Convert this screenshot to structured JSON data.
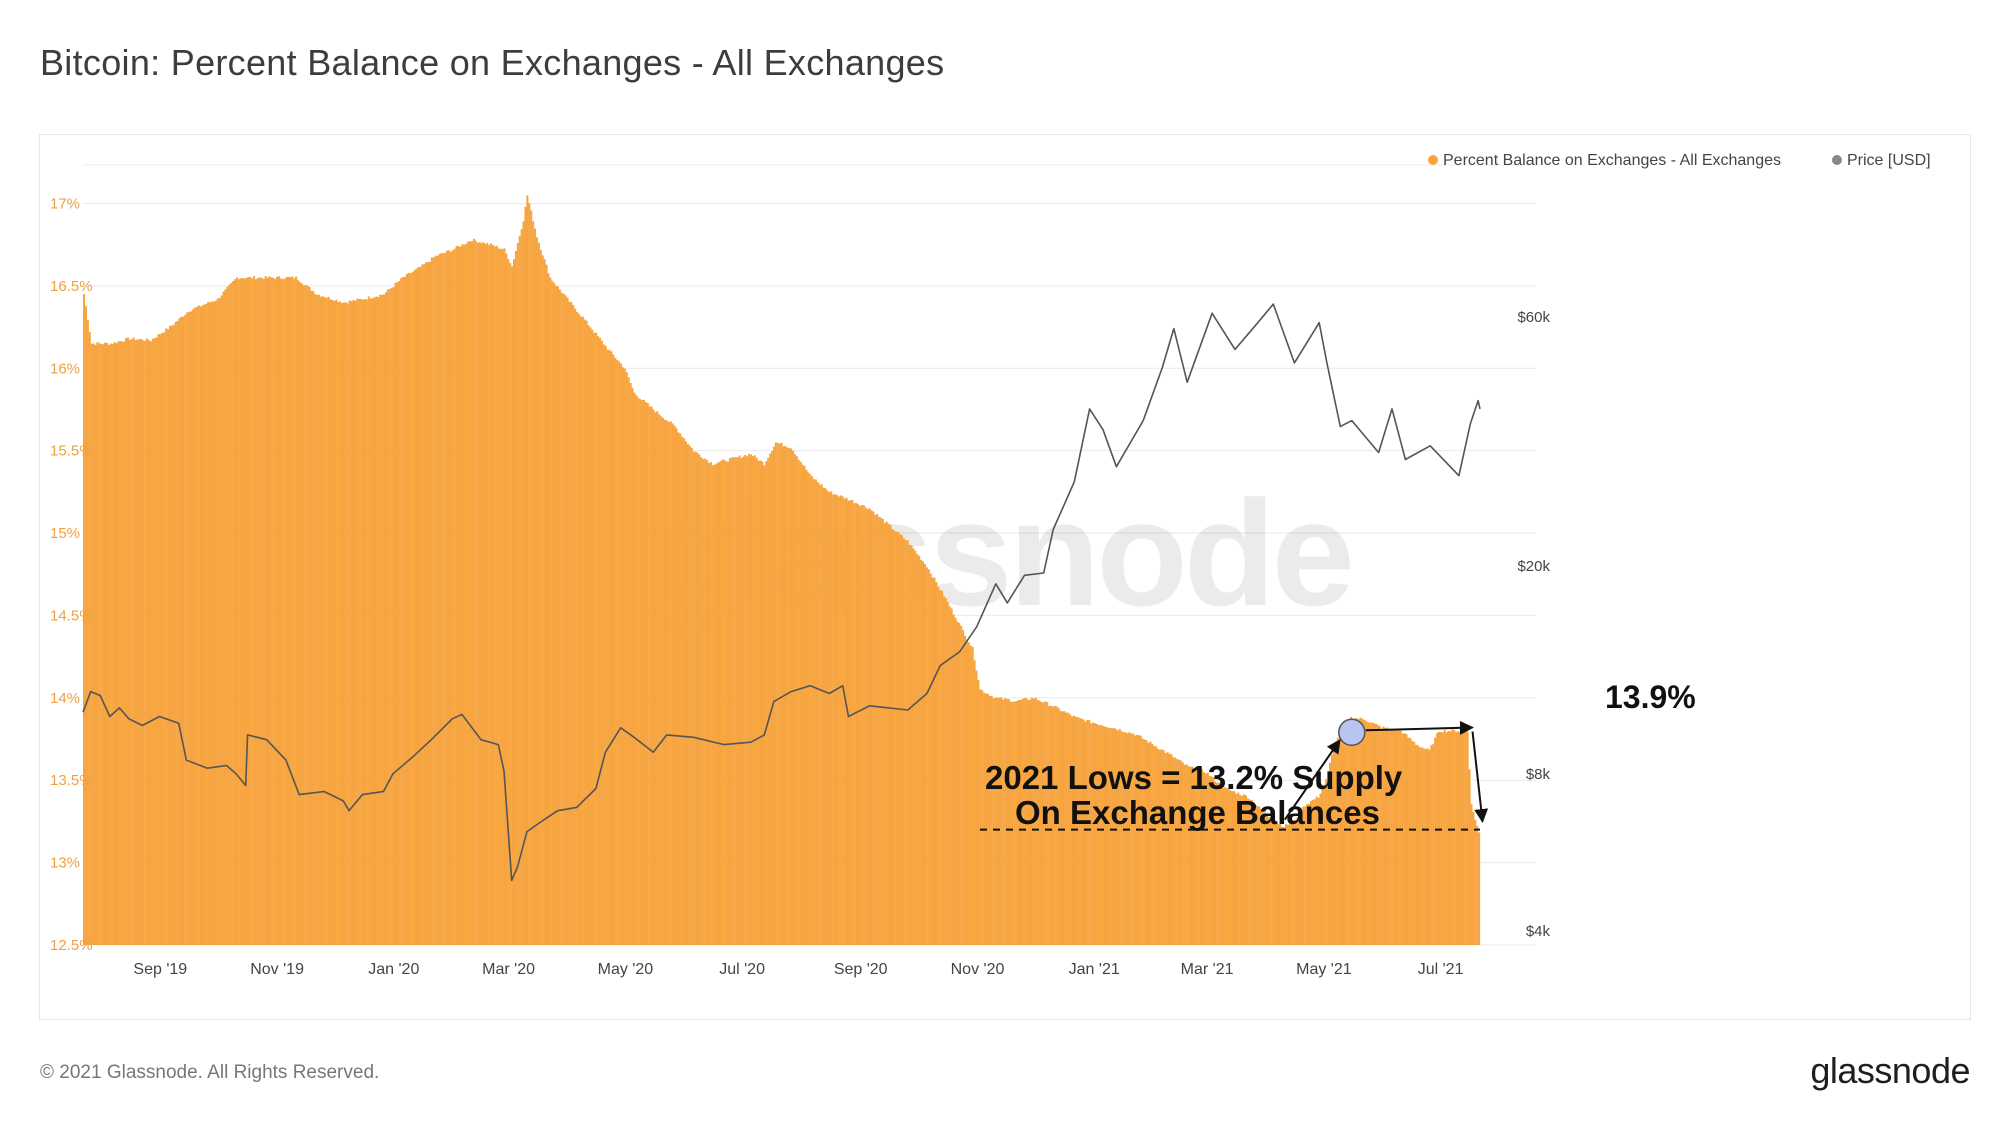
{
  "title": "Bitcoin: Percent Balance on Exchanges - All Exchanges",
  "footer": {
    "copyright": "© 2021 Glassnode. All Rights Reserved.",
    "logo": "glassnode"
  },
  "watermark": "glassnode",
  "colors": {
    "bars": "#f7a540",
    "price_line": "#555555",
    "legend_price_dot": "#888888",
    "left_axis": "#f0a040",
    "highlight_circle": "#b9c4f0"
  },
  "chart_data": {
    "type": "bar",
    "legend": {
      "placement": "top-right",
      "entries": [
        {
          "label": "Percent Balance on Exchanges - All Exchanges",
          "color": "#f7a540"
        },
        {
          "label": "Price [USD]",
          "color": "#888888"
        }
      ]
    },
    "x_axis": {
      "type": "date",
      "ticks": [
        "Sep '19",
        "Nov '19",
        "Jan '20",
        "Mar '20",
        "May '20",
        "Jul '20",
        "Sep '20",
        "Nov '20",
        "Jan '21",
        "Mar '21",
        "May '21",
        "Jul '21"
      ],
      "tick_dates": [
        "2019-09-01",
        "2019-11-01",
        "2020-01-01",
        "2020-03-01",
        "2020-05-01",
        "2020-07-01",
        "2020-09-01",
        "2020-11-01",
        "2021-01-01",
        "2021-03-01",
        "2021-05-01",
        "2021-07-01"
      ],
      "range": [
        "2019-08-01",
        "2021-07-31"
      ]
    },
    "y_left": {
      "label": "",
      "ylim": [
        12.5,
        17.1
      ],
      "ticks": [
        12.5,
        13,
        13.5,
        14,
        14.5,
        15,
        15.5,
        16,
        16.5,
        17
      ],
      "tick_labels": [
        "12.5%",
        "13%",
        "13.5%",
        "14%",
        "14.5%",
        "15%",
        "15.5%",
        "16%",
        "16.5%",
        "17%"
      ]
    },
    "y_right": {
      "label": "",
      "scale": "log",
      "ylim": [
        4000,
        60000
      ],
      "ticks": [
        4000,
        8000,
        20000,
        60000
      ],
      "tick_labels": [
        "$4k",
        "$8k",
        "$20k",
        "$60k"
      ]
    },
    "grid": true,
    "series": [
      {
        "name": "Percent Balance on Exchanges - All Exchanges",
        "type": "bar",
        "axis": "left",
        "points": [
          [
            "2019-08-01",
            16.45
          ],
          [
            "2019-08-05",
            16.15
          ],
          [
            "2019-08-15",
            16.15
          ],
          [
            "2019-08-25",
            16.18
          ],
          [
            "2019-09-05",
            16.17
          ],
          [
            "2019-09-15",
            16.25
          ],
          [
            "2019-09-25",
            16.35
          ],
          [
            "2019-10-10",
            16.42
          ],
          [
            "2019-10-20",
            16.55
          ],
          [
            "2019-10-25",
            16.55
          ],
          [
            "2019-11-05",
            16.55
          ],
          [
            "2019-11-20",
            16.55
          ],
          [
            "2019-12-01",
            16.45
          ],
          [
            "2019-12-15",
            16.4
          ],
          [
            "2019-12-25",
            16.42
          ],
          [
            "2020-01-05",
            16.45
          ],
          [
            "2020-01-15",
            16.55
          ],
          [
            "2020-01-25",
            16.62
          ],
          [
            "2020-02-01",
            16.68
          ],
          [
            "2020-02-10",
            16.72
          ],
          [
            "2020-02-20",
            16.78
          ],
          [
            "2020-03-01",
            16.75
          ],
          [
            "2020-03-08",
            16.72
          ],
          [
            "2020-03-12",
            16.62
          ],
          [
            "2020-03-18",
            16.9
          ],
          [
            "2020-03-20",
            17.05
          ],
          [
            "2020-03-25",
            16.8
          ],
          [
            "2020-04-01",
            16.55
          ],
          [
            "2020-04-10",
            16.42
          ],
          [
            "2020-04-20",
            16.28
          ],
          [
            "2020-05-01",
            16.12
          ],
          [
            "2020-05-10",
            16.0
          ],
          [
            "2020-05-15",
            15.85
          ],
          [
            "2020-05-25",
            15.75
          ],
          [
            "2020-06-05",
            15.65
          ],
          [
            "2020-06-15",
            15.5
          ],
          [
            "2020-06-25",
            15.42
          ],
          [
            "2020-07-05",
            15.45
          ],
          [
            "2020-07-15",
            15.48
          ],
          [
            "2020-07-22",
            15.42
          ],
          [
            "2020-07-28",
            15.55
          ],
          [
            "2020-08-05",
            15.52
          ],
          [
            "2020-08-15",
            15.35
          ],
          [
            "2020-08-25",
            15.25
          ],
          [
            "2020-09-05",
            15.2
          ],
          [
            "2020-09-15",
            15.15
          ],
          [
            "2020-09-25",
            15.05
          ],
          [
            "2020-10-05",
            14.95
          ],
          [
            "2020-10-15",
            14.8
          ],
          [
            "2020-10-25",
            14.6
          ],
          [
            "2020-11-01",
            14.45
          ],
          [
            "2020-11-08",
            14.3
          ],
          [
            "2020-11-12",
            14.05
          ],
          [
            "2020-11-20",
            14.0
          ],
          [
            "2020-12-01",
            13.98
          ],
          [
            "2020-12-10",
            14.0
          ],
          [
            "2020-12-20",
            13.95
          ],
          [
            "2021-01-01",
            13.88
          ],
          [
            "2021-01-10",
            13.85
          ],
          [
            "2021-01-20",
            13.82
          ],
          [
            "2021-02-01",
            13.78
          ],
          [
            "2021-02-10",
            13.72
          ],
          [
            "2021-02-20",
            13.65
          ],
          [
            "2021-03-01",
            13.58
          ],
          [
            "2021-03-10",
            13.55
          ],
          [
            "2021-03-20",
            13.45
          ],
          [
            "2021-04-01",
            13.4
          ],
          [
            "2021-04-10",
            13.3
          ],
          [
            "2021-04-15",
            13.25
          ],
          [
            "2021-04-20",
            13.22
          ],
          [
            "2021-04-25",
            13.25
          ],
          [
            "2021-05-01",
            13.35
          ],
          [
            "2021-05-08",
            13.4
          ],
          [
            "2021-05-12",
            13.5
          ],
          [
            "2021-05-16",
            13.7
          ],
          [
            "2021-05-20",
            13.82
          ],
          [
            "2021-05-25",
            13.88
          ],
          [
            "2021-06-01",
            13.87
          ],
          [
            "2021-06-10",
            13.82
          ],
          [
            "2021-06-20",
            13.8
          ],
          [
            "2021-06-28",
            13.72
          ],
          [
            "2021-07-01",
            13.7
          ],
          [
            "2021-07-05",
            13.68
          ],
          [
            "2021-07-10",
            13.8
          ],
          [
            "2021-07-20",
            13.8
          ],
          [
            "2021-07-25",
            13.8
          ],
          [
            "2021-07-27",
            13.35
          ],
          [
            "2021-07-31",
            13.18
          ]
        ]
      },
      {
        "name": "Price [USD]",
        "type": "line",
        "axis": "right",
        "points": [
          [
            "2019-08-01",
            10500
          ],
          [
            "2019-08-05",
            11500
          ],
          [
            "2019-08-10",
            11300
          ],
          [
            "2019-08-15",
            10300
          ],
          [
            "2019-08-20",
            10700
          ],
          [
            "2019-08-25",
            10200
          ],
          [
            "2019-09-01",
            9900
          ],
          [
            "2019-09-10",
            10300
          ],
          [
            "2019-09-20",
            10000
          ],
          [
            "2019-09-24",
            8500
          ],
          [
            "2019-10-05",
            8200
          ],
          [
            "2019-10-15",
            8300
          ],
          [
            "2019-10-20",
            8000
          ],
          [
            "2019-10-25",
            7600
          ],
          [
            "2019-10-26",
            9500
          ],
          [
            "2019-11-05",
            9300
          ],
          [
            "2019-11-15",
            8500
          ],
          [
            "2019-11-22",
            7300
          ],
          [
            "2019-12-05",
            7400
          ],
          [
            "2019-12-15",
            7100
          ],
          [
            "2019-12-18",
            6800
          ],
          [
            "2019-12-25",
            7300
          ],
          [
            "2020-01-05",
            7400
          ],
          [
            "2020-01-10",
            8000
          ],
          [
            "2020-01-20",
            8600
          ],
          [
            "2020-01-30",
            9300
          ],
          [
            "2020-02-10",
            10200
          ],
          [
            "2020-02-15",
            10400
          ],
          [
            "2020-02-25",
            9300
          ],
          [
            "2020-03-05",
            9100
          ],
          [
            "2020-03-08",
            8100
          ],
          [
            "2020-03-12",
            5000
          ],
          [
            "2020-03-15",
            5300
          ],
          [
            "2020-03-20",
            6200
          ],
          [
            "2020-03-28",
            6500
          ],
          [
            "2020-04-05",
            6800
          ],
          [
            "2020-04-15",
            6900
          ],
          [
            "2020-04-25",
            7500
          ],
          [
            "2020-04-30",
            8800
          ],
          [
            "2020-05-08",
            9800
          ],
          [
            "2020-05-15",
            9400
          ],
          [
            "2020-05-25",
            8800
          ],
          [
            "2020-06-01",
            9500
          ],
          [
            "2020-06-15",
            9400
          ],
          [
            "2020-07-01",
            9100
          ],
          [
            "2020-07-15",
            9200
          ],
          [
            "2020-07-22",
            9500
          ],
          [
            "2020-07-27",
            11000
          ],
          [
            "2020-08-05",
            11500
          ],
          [
            "2020-08-15",
            11800
          ],
          [
            "2020-08-25",
            11400
          ],
          [
            "2020-09-01",
            11800
          ],
          [
            "2020-09-04",
            10300
          ],
          [
            "2020-09-15",
            10800
          ],
          [
            "2020-09-25",
            10700
          ],
          [
            "2020-10-05",
            10600
          ],
          [
            "2020-10-15",
            11400
          ],
          [
            "2020-10-22",
            12900
          ],
          [
            "2020-11-01",
            13700
          ],
          [
            "2020-11-10",
            15300
          ],
          [
            "2020-11-20",
            18500
          ],
          [
            "2020-11-26",
            17000
          ],
          [
            "2020-12-05",
            19200
          ],
          [
            "2020-12-15",
            19400
          ],
          [
            "2020-12-20",
            23500
          ],
          [
            "2020-12-31",
            29000
          ],
          [
            "2021-01-08",
            40000
          ],
          [
            "2021-01-15",
            36500
          ],
          [
            "2021-01-22",
            31000
          ],
          [
            "2021-02-05",
            38000
          ],
          [
            "2021-02-15",
            48000
          ],
          [
            "2021-02-21",
            57000
          ],
          [
            "2021-02-28",
            45000
          ],
          [
            "2021-03-13",
            61000
          ],
          [
            "2021-03-25",
            52000
          ],
          [
            "2021-04-05",
            58000
          ],
          [
            "2021-04-14",
            63500
          ],
          [
            "2021-04-25",
            49000
          ],
          [
            "2021-05-08",
            58500
          ],
          [
            "2021-05-12",
            49000
          ],
          [
            "2021-05-19",
            37000
          ],
          [
            "2021-05-25",
            38000
          ],
          [
            "2021-06-08",
            33000
          ],
          [
            "2021-06-15",
            40000
          ],
          [
            "2021-06-22",
            32000
          ],
          [
            "2021-07-05",
            34000
          ],
          [
            "2021-07-20",
            29800
          ],
          [
            "2021-07-26",
            37500
          ],
          [
            "2021-07-30",
            41500
          ],
          [
            "2021-07-31",
            40000
          ]
        ]
      }
    ],
    "annotations": [
      {
        "text": "2021 Lows = 13.2% Supply",
        "line2": "On Exchange Balances",
        "value": 13.2
      },
      {
        "text": "13.9%",
        "value": 13.9
      }
    ]
  }
}
